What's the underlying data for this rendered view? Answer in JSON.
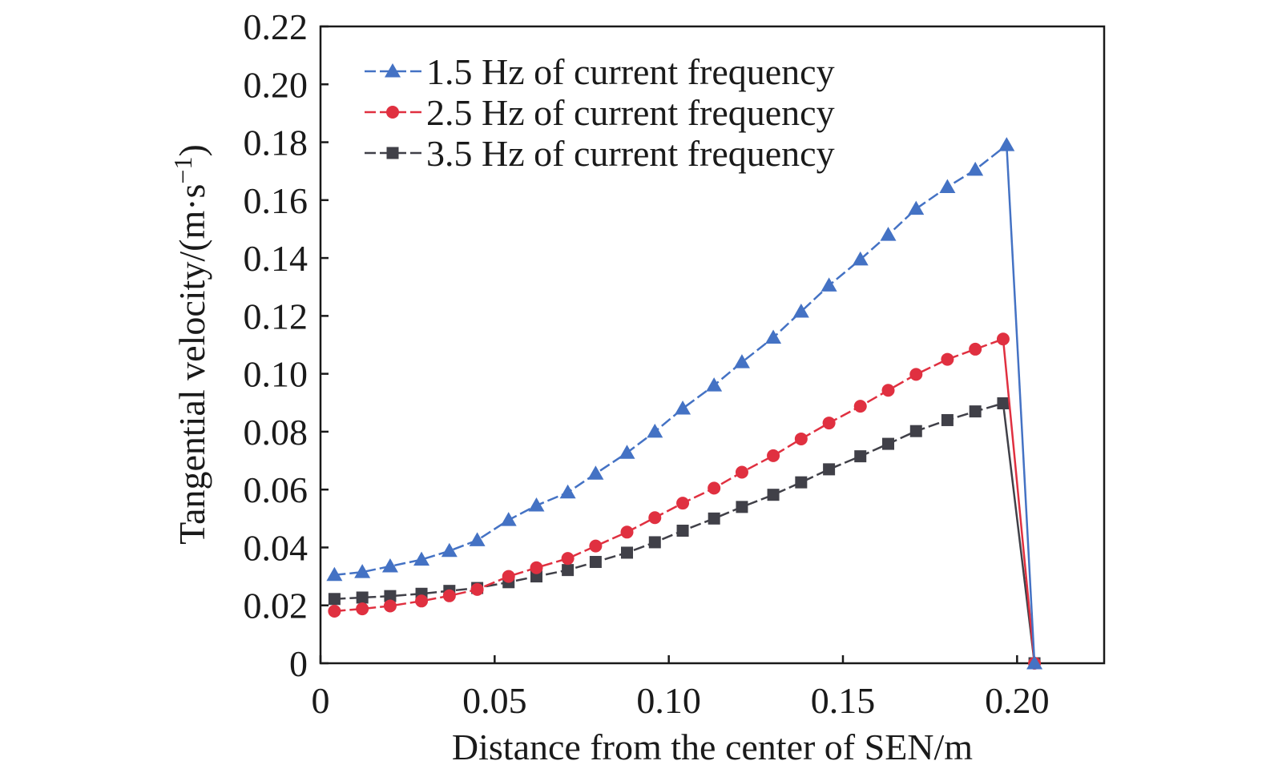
{
  "chart_data": {
    "type": "line",
    "title": "",
    "xlabel": "Distance from the center of SEN/m",
    "ylabel_main": "Tangential velocity/(m·s",
    "ylabel_sup": "−1",
    "ylabel_close": ")",
    "xlim": [
      0,
      0.225
    ],
    "ylim": [
      0,
      0.22
    ],
    "xticks": [
      0,
      0.05,
      0.1,
      0.15,
      0.2
    ],
    "xtick_labels": [
      "0",
      "0.05",
      "0.10",
      "0.15",
      "0.20"
    ],
    "yticks": [
      0,
      0.02,
      0.04,
      0.06,
      0.08,
      0.1,
      0.12,
      0.14,
      0.16,
      0.18,
      0.2,
      0.22
    ],
    "ytick_labels": [
      "0",
      "0.02",
      "0.04",
      "0.06",
      "0.08",
      "0.10",
      "0.12",
      "0.14",
      "0.16",
      "0.18",
      "0.20",
      "0.22"
    ],
    "grid": false,
    "legend_position": "top-left",
    "series": [
      {
        "name": "1.5 Hz of current frequency",
        "color": "#4472c4",
        "marker": "triangle",
        "x": [
          0.004,
          0.012,
          0.02,
          0.029,
          0.037,
          0.045,
          0.054,
          0.062,
          0.071,
          0.079,
          0.088,
          0.096,
          0.104,
          0.113,
          0.121,
          0.13,
          0.138,
          0.146,
          0.155,
          0.163,
          0.171,
          0.18,
          0.188,
          0.197,
          0.205
        ],
        "values": [
          0.0305,
          0.0315,
          0.0335,
          0.0358,
          0.0388,
          0.0425,
          0.0495,
          0.0545,
          0.059,
          0.0655,
          0.0727,
          0.08,
          0.088,
          0.096,
          0.104,
          0.1125,
          0.1215,
          0.1305,
          0.1395,
          0.148,
          0.157,
          0.1645,
          0.1705,
          0.179,
          0.0
        ]
      },
      {
        "name": "2.5 Hz of current frequency",
        "color": "#e03040",
        "marker": "circle",
        "x": [
          0.004,
          0.012,
          0.02,
          0.029,
          0.037,
          0.045,
          0.054,
          0.062,
          0.071,
          0.079,
          0.088,
          0.096,
          0.104,
          0.113,
          0.121,
          0.13,
          0.138,
          0.146,
          0.155,
          0.163,
          0.171,
          0.18,
          0.188,
          0.196,
          0.205
        ],
        "values": [
          0.018,
          0.0188,
          0.0198,
          0.0215,
          0.0233,
          0.0255,
          0.03,
          0.033,
          0.0362,
          0.0405,
          0.0453,
          0.0503,
          0.0553,
          0.0605,
          0.066,
          0.0717,
          0.0775,
          0.083,
          0.0888,
          0.0943,
          0.0998,
          0.105,
          0.1085,
          0.112,
          0.0
        ]
      },
      {
        "name": "3.5 Hz of current frequency",
        "color": "#404048",
        "marker": "square",
        "x": [
          0.004,
          0.012,
          0.02,
          0.029,
          0.037,
          0.045,
          0.054,
          0.062,
          0.071,
          0.079,
          0.088,
          0.096,
          0.104,
          0.113,
          0.121,
          0.13,
          0.138,
          0.146,
          0.155,
          0.163,
          0.171,
          0.18,
          0.188,
          0.196,
          0.205
        ],
        "values": [
          0.0222,
          0.0227,
          0.0232,
          0.024,
          0.025,
          0.026,
          0.028,
          0.03,
          0.0322,
          0.035,
          0.0382,
          0.0418,
          0.0458,
          0.05,
          0.054,
          0.0582,
          0.0625,
          0.067,
          0.0715,
          0.0758,
          0.0802,
          0.084,
          0.087,
          0.0898,
          0.0
        ]
      }
    ]
  }
}
